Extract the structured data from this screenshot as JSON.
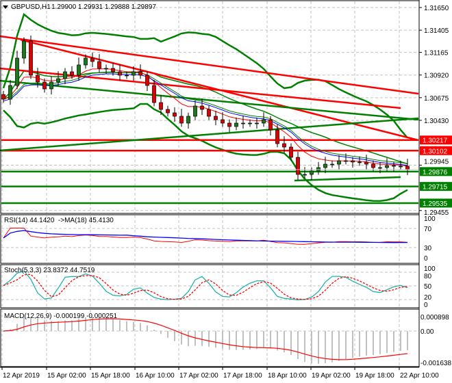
{
  "header": {
    "symbol": "GBPUSD,H1",
    "ohlc": "1.29900 1.29931 1.29888 1.29897",
    "menu_icon": "triangle-down-icon"
  },
  "colors": {
    "bull": "#1a7a1a",
    "bear": "#e00000",
    "support": "#008000",
    "resistance": "#ff0000",
    "ma_fast": "#ff0000",
    "ma_slow": "#0000ff",
    "rsi": "#ff0000",
    "rsi_ma": "#0000ff",
    "stoch_main": "#20b2aa",
    "stoch_signal": "#ff0000",
    "macd_hist": "#c0c0c0",
    "macd_signal": "#ff0000"
  },
  "chart_data": [
    {
      "type": "candlestick",
      "title": "GBPUSD,H1",
      "ylim": [
        1.29455,
        1.3165
      ],
      "y_ticks": [
        "1.31650",
        "1.31405",
        "1.31165",
        "1.30920",
        "1.30675",
        "1.30430",
        "1.29945",
        "1.29455"
      ],
      "x_ticks": [
        "12 Apr 2019",
        "15 Apr 02:00",
        "15 Apr 18:00",
        "16 Apr 10:00",
        "17 Apr 02:00",
        "17 Apr 18:00",
        "18 Apr 10:00",
        "19 Apr 02:00",
        "19 Apr 18:00",
        "22 Apr 10:00"
      ],
      "closes": [
        1.30659,
        1.30807,
        1.31103,
        1.31288,
        1.30918,
        1.30844,
        1.3077,
        1.30844,
        1.30881,
        1.30955,
        1.30918,
        1.31029,
        1.31103,
        1.31066,
        1.30992,
        1.30992,
        1.30955,
        1.30918,
        1.30918,
        1.30955,
        1.30918,
        1.30807,
        1.30622,
        1.30548,
        1.30511,
        1.30474,
        1.304,
        1.30474,
        1.30585,
        1.30548,
        1.30474,
        1.30437,
        1.304,
        1.30363,
        1.304,
        1.304,
        1.304,
        1.304,
        1.30437,
        1.30326,
        1.30178,
        1.30141,
        1.3003,
        1.29845,
        1.29845,
        1.29882,
        1.29919,
        1.29956,
        1.29956,
        1.29993,
        1.29993,
        1.29979,
        1.29979,
        1.29956,
        1.29919,
        1.29919,
        1.29941,
        1.29934,
        1.29934,
        1.29897
      ],
      "levels": [
        {
          "price": 1.30217,
          "label": "1.30217",
          "kind": "resistance"
        },
        {
          "price": 1.30102,
          "label": "1.30102",
          "kind": "resistance"
        },
        {
          "price": 1.29876,
          "label": "1.29876",
          "kind": "support"
        },
        {
          "price": 1.29715,
          "label": "1.29715",
          "kind": "support"
        },
        {
          "price": 1.29535,
          "label": "1.29535",
          "kind": "support"
        }
      ],
      "trendlines": [
        {
          "kind": "resistance",
          "from": [
            -0.5,
            1.31339
          ],
          "to": [
            60.7,
            1.30718
          ]
        },
        {
          "kind": "resistance",
          "from": [
            -0.5,
            1.30992
          ],
          "to": [
            58,
            1.30563
          ]
        },
        {
          "kind": "resistance",
          "from": [
            2.5,
            1.31302
          ],
          "to": [
            60.7,
            1.30215
          ]
        },
        {
          "kind": "support",
          "from": [
            -0.5,
            1.30859
          ],
          "to": [
            60.7,
            1.30437
          ]
        },
        {
          "kind": "support",
          "from": [
            -0.5,
            1.30104
          ],
          "to": [
            60.7,
            1.30452
          ]
        },
        {
          "kind": "support",
          "from": [
            42.5,
            1.29779
          ],
          "to": [
            58,
            1.29816
          ]
        }
      ]
    },
    {
      "type": "line",
      "title": "RSI(14) 44.1420  ->MA(18) 45.4130",
      "ylim": [
        0,
        100
      ],
      "y_ticks": [
        "100",
        "70",
        "30",
        "0"
      ]
    },
    {
      "type": "line",
      "title": "Stoch(5,3,3) 23.8372 44.7519",
      "ylim": [
        0,
        100
      ],
      "y_ticks": [
        "100",
        "80",
        "50",
        "20",
        "0"
      ]
    },
    {
      "type": "bar",
      "title": "MACD(12,26,9) -0.000199 -0.000251",
      "y_ticks": [
        "0.000898",
        "0.00",
        "-0.001638"
      ]
    }
  ]
}
